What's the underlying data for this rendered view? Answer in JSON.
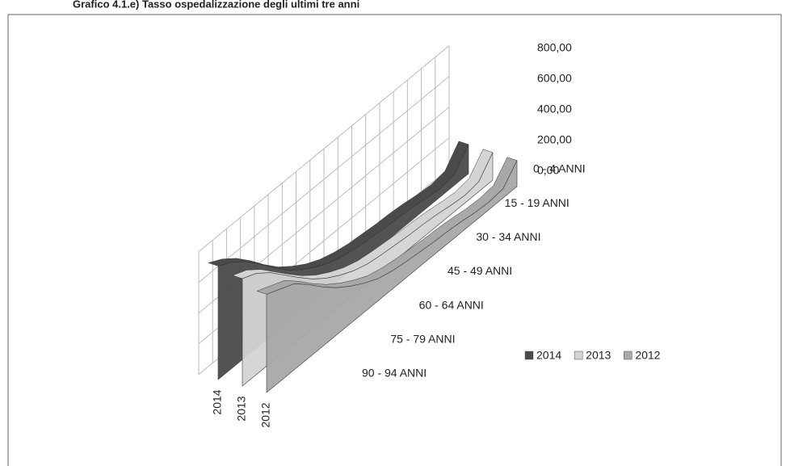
{
  "chart_data": {
    "type": "area3d",
    "title": "Grafico 4.1.e)      Tasso ospedalizzazione degli ultimi tre anni",
    "categories": [
      "0 - 4 ANNI",
      null,
      null,
      "15 - 19 ANNI",
      null,
      null,
      "30 - 34 ANNI",
      null,
      null,
      "45 - 49 ANNI",
      null,
      null,
      "60 - 64 ANNI",
      null,
      null,
      "75 - 79 ANNI",
      null,
      null,
      "90 - 94 ANNI"
    ],
    "series": [
      {
        "name": "2014",
        "color": "#4a4a4a",
        "values": [
          190,
          70,
          55,
          65,
          80,
          90,
          95,
          105,
          115,
          135,
          165,
          210,
          270,
          340,
          430,
          530,
          620,
          690,
          740
        ]
      },
      {
        "name": "2013",
        "color": "#d4d4d4",
        "values": [
          180,
          65,
          50,
          60,
          75,
          85,
          90,
          100,
          110,
          125,
          155,
          200,
          255,
          325,
          410,
          500,
          590,
          660,
          700
        ]
      },
      {
        "name": "2012",
        "color": "#a8a8a8",
        "values": [
          170,
          60,
          50,
          55,
          70,
          80,
          85,
          95,
          105,
          120,
          145,
          190,
          245,
          310,
          390,
          480,
          560,
          600,
          640
        ]
      }
    ],
    "ylim": [
      0,
      800
    ],
    "yticks": [
      {
        "value": 0,
        "label": "0,00"
      },
      {
        "value": 200,
        "label": "200,00"
      },
      {
        "value": 400,
        "label": "400,00"
      },
      {
        "value": 600,
        "label": "600,00"
      },
      {
        "value": 800,
        "label": "800,00"
      }
    ],
    "grid": true,
    "legend": "right"
  }
}
